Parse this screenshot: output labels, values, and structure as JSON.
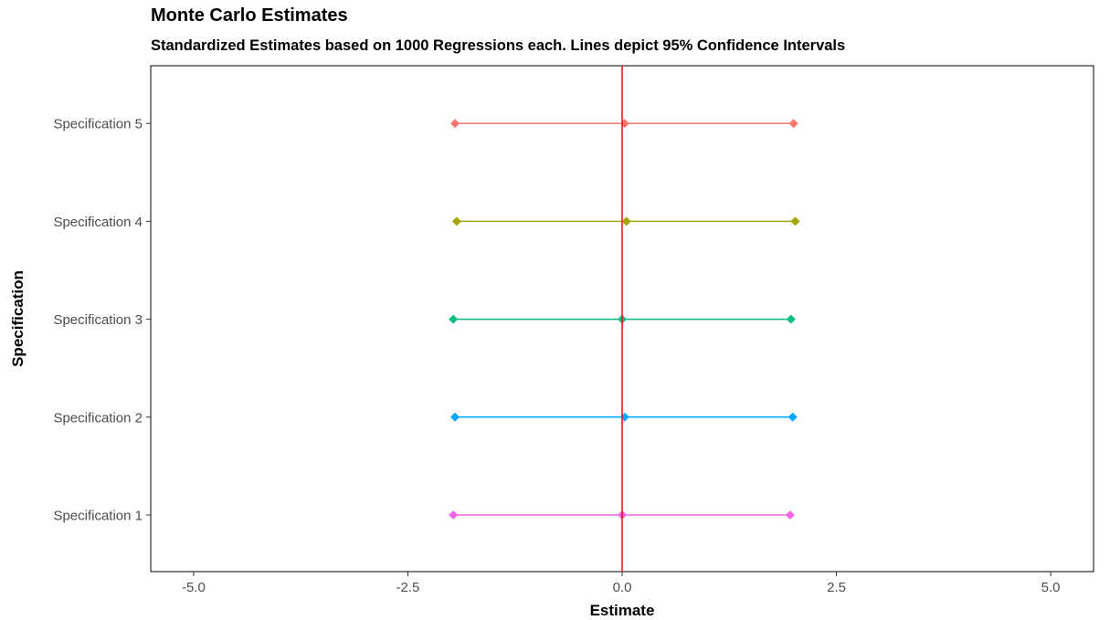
{
  "chart_data": {
    "type": "errorbar",
    "title": "Monte Carlo Estimates",
    "subtitle": "Standardized Estimates based on 1000 Regressions each. Lines depict 95% Confidence Intervals",
    "xlabel": "Estimate",
    "ylabel": "Specification",
    "xlim": [
      -5.5,
      5.5
    ],
    "x_ticks": [
      "-5.0",
      "-2.5",
      "0.0",
      "2.5",
      "5.0"
    ],
    "x_tick_values": [
      -5,
      -2.5,
      0,
      2.5,
      5
    ],
    "reference_line": {
      "x": 0,
      "color": "#e41a1c"
    },
    "grid": false,
    "legend": "none",
    "categories": [
      "Specification 1",
      "Specification 2",
      "Specification 3",
      "Specification 4",
      "Specification 5"
    ],
    "series": [
      {
        "category": "Specification 1",
        "lower": -1.97,
        "estimate": 0.0,
        "upper": 1.96,
        "color": "#f066e6"
      },
      {
        "category": "Specification 2",
        "lower": -1.95,
        "estimate": 0.03,
        "upper": 1.99,
        "color": "#00a8ff"
      },
      {
        "category": "Specification 3",
        "lower": -1.97,
        "estimate": 0.0,
        "upper": 1.97,
        "color": "#00bf7d"
      },
      {
        "category": "Specification 4",
        "lower": -1.93,
        "estimate": 0.05,
        "upper": 2.02,
        "color": "#a3a500"
      },
      {
        "category": "Specification 5",
        "lower": -1.95,
        "estimate": 0.03,
        "upper": 2.0,
        "color": "#f8766d"
      }
    ]
  }
}
